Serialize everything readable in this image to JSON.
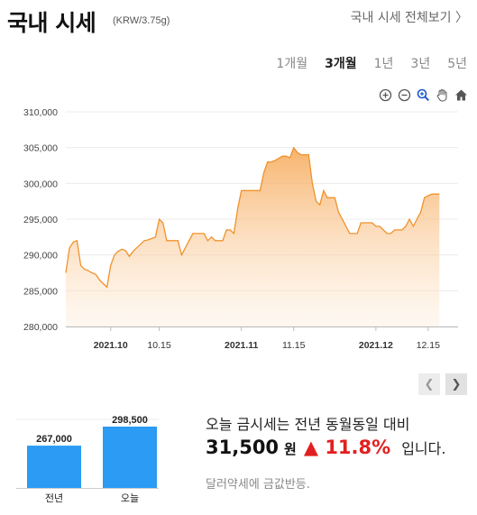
{
  "header": {
    "title": "국내 시세",
    "unit": "(KRW/3.75g)",
    "view_all": "국내 시세 전체보기 〉"
  },
  "periods": [
    {
      "label": "1개월",
      "active": false
    },
    {
      "label": "3개월",
      "active": true
    },
    {
      "label": "1년",
      "active": false
    },
    {
      "label": "3년",
      "active": false
    },
    {
      "label": "5년",
      "active": false
    }
  ],
  "toolbar": [
    "zoom-in-icon",
    "zoom-out-icon",
    "magnifier-icon",
    "pan-hand-icon",
    "home-icon"
  ],
  "chart_data": {
    "type": "area",
    "ylim": [
      280000,
      310000
    ],
    "yticks": [
      "310,000",
      "305,000",
      "300,000",
      "295,000",
      "290,000",
      "285,000",
      "280,000"
    ],
    "xticks": [
      {
        "label": "2021.10",
        "bold": true,
        "x": 12
      },
      {
        "label": "10.15",
        "bold": false,
        "x": 25
      },
      {
        "label": "2021.11",
        "bold": true,
        "x": 47
      },
      {
        "label": "11.15",
        "bold": false,
        "x": 61
      },
      {
        "label": "2021.12",
        "bold": true,
        "x": 83
      },
      {
        "label": "12.15",
        "bold": false,
        "x": 97
      }
    ],
    "x_range": [
      0,
      105
    ],
    "series": [
      {
        "color": "#f0922c",
        "values": [
          [
            0,
            287500
          ],
          [
            1,
            291000
          ],
          [
            2,
            291800
          ],
          [
            3,
            292000
          ],
          [
            4,
            288500
          ],
          [
            5,
            288000
          ],
          [
            6,
            287800
          ],
          [
            7,
            287500
          ],
          [
            8,
            287300
          ],
          [
            9,
            286500
          ],
          [
            10,
            286000
          ],
          [
            11,
            285500
          ],
          [
            12,
            288500
          ],
          [
            13,
            290000
          ],
          [
            14,
            290500
          ],
          [
            15,
            290800
          ],
          [
            16,
            290600
          ],
          [
            17,
            289800
          ],
          [
            18,
            290500
          ],
          [
            19,
            291000
          ],
          [
            20,
            291500
          ],
          [
            21,
            292000
          ],
          [
            22,
            292100
          ],
          [
            23,
            292300
          ],
          [
            24,
            292500
          ],
          [
            25,
            295000
          ],
          [
            26,
            294500
          ],
          [
            27,
            292000
          ],
          [
            28,
            292000
          ],
          [
            29,
            292000
          ],
          [
            30,
            292000
          ],
          [
            31,
            290000
          ],
          [
            32,
            291000
          ],
          [
            33,
            292000
          ],
          [
            34,
            293000
          ],
          [
            35,
            293000
          ],
          [
            36,
            293000
          ],
          [
            37,
            293000
          ],
          [
            38,
            292000
          ],
          [
            39,
            292500
          ],
          [
            40,
            292000
          ],
          [
            41,
            292000
          ],
          [
            42,
            292000
          ],
          [
            43,
            293500
          ],
          [
            44,
            293500
          ],
          [
            45,
            293000
          ],
          [
            46,
            296500
          ],
          [
            47,
            299000
          ],
          [
            48,
            299000
          ],
          [
            49,
            299000
          ],
          [
            50,
            299000
          ],
          [
            51,
            299000
          ],
          [
            52,
            299000
          ],
          [
            53,
            301500
          ],
          [
            54,
            303000
          ],
          [
            55,
            303000
          ],
          [
            56,
            303200
          ],
          [
            57,
            303500
          ],
          [
            58,
            303800
          ],
          [
            59,
            303800
          ],
          [
            60,
            303600
          ],
          [
            61,
            305000
          ],
          [
            62,
            304300
          ],
          [
            63,
            304000
          ],
          [
            64,
            304000
          ],
          [
            65,
            304000
          ],
          [
            66,
            300000
          ],
          [
            67,
            297500
          ],
          [
            68,
            297000
          ],
          [
            69,
            299000
          ],
          [
            70,
            298000
          ],
          [
            71,
            298000
          ],
          [
            72,
            298000
          ],
          [
            73,
            296000
          ],
          [
            74,
            295000
          ],
          [
            75,
            294000
          ],
          [
            76,
            293000
          ],
          [
            77,
            293000
          ],
          [
            78,
            293000
          ],
          [
            79,
            294500
          ],
          [
            80,
            294500
          ],
          [
            81,
            294500
          ],
          [
            82,
            294500
          ],
          [
            83,
            294000
          ],
          [
            84,
            294000
          ],
          [
            85,
            293500
          ],
          [
            86,
            293000
          ],
          [
            87,
            293000
          ],
          [
            88,
            293500
          ],
          [
            89,
            293500
          ],
          [
            90,
            293500
          ],
          [
            91,
            294000
          ],
          [
            92,
            295000
          ],
          [
            93,
            294000
          ],
          [
            94,
            295000
          ],
          [
            95,
            296000
          ],
          [
            96,
            298000
          ],
          [
            97,
            298300
          ],
          [
            98,
            298500
          ],
          [
            99,
            298500
          ],
          [
            100,
            298500
          ]
        ]
      }
    ]
  },
  "mini_chart": {
    "type": "bar",
    "categories": [
      "전년",
      "오늘"
    ],
    "values": [
      267000,
      298500
    ],
    "value_labels": [
      "267,000",
      "298,500"
    ],
    "color": "#2b9bf4"
  },
  "summary": {
    "line1": "오늘 금시세는 전년 동월동일 대비",
    "amount": "31,500",
    "won": "원",
    "change": "▲ 11.8%",
    "tail": "입니다.",
    "note": "달러약세에 금값반등."
  },
  "colors": {
    "accent": "#f0922c",
    "bar": "#2b9bf4",
    "up": "#e21f1f"
  }
}
